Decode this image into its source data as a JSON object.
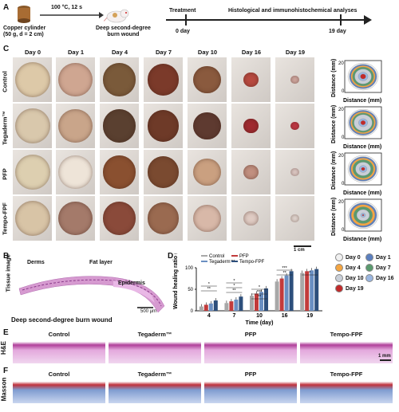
{
  "panels": {
    "A": "A",
    "B": "B",
    "C": "C",
    "D": "D",
    "E": "E",
    "F": "F"
  },
  "panelA": {
    "cylinder": "Copper cylinder\n(50 g, d = 2 cm)",
    "condition": "100 °C, 12 s",
    "burn": "Deep second-degree\nburn wound",
    "treatment": "Treatment",
    "analysis": "Histological and immunohistochemical analyses",
    "day0": "0 day",
    "day19": "19 day"
  },
  "panelC": {
    "days": [
      "Day 0",
      "Day 1",
      "Day 4",
      "Day 7",
      "Day 10",
      "Day 16",
      "Day 19"
    ],
    "rows": [
      "Control",
      "Tegaderm™",
      "PFP",
      "Tempo-FPF"
    ],
    "scale": "1 cm",
    "axis_y": "Distance (mm)",
    "axis_x": "Distance (mm)",
    "tick0": "0",
    "tick20": "20"
  },
  "legend": [
    {
      "label": "Day 0",
      "color": "#f0f0f0"
    },
    {
      "label": "Day 1",
      "color": "#5b7fbf"
    },
    {
      "label": "Day 4",
      "color": "#f4a541"
    },
    {
      "label": "Day 7",
      "color": "#5a9a6e"
    },
    {
      "label": "Day 10",
      "color": "#c9cfd8"
    },
    {
      "label": "Day 16",
      "color": "#9ab6e0"
    },
    {
      "label": "Day 19",
      "color": "#c22a2a"
    }
  ],
  "panelB": {
    "ylabel": "Tissue image",
    "derms": "Derms",
    "fat": "Fat layer",
    "epidermis": "Epidermis",
    "scale": "500 µm",
    "caption": "Deep second-degree burn wound"
  },
  "chart_data": {
    "type": "bar",
    "title": "",
    "xlabel": "Time (day)",
    "ylabel": "Wound healing ratio (%)",
    "ylim": [
      0,
      100
    ],
    "yticks": [
      "0",
      "50",
      "100"
    ],
    "categories": [
      "4",
      "7",
      "10",
      "16",
      "19"
    ],
    "series": [
      {
        "name": "Control",
        "color": "#a8a8a8",
        "values": [
          10,
          18,
          35,
          68,
          88
        ]
      },
      {
        "name": "PFP",
        "color": "#c23b3b",
        "values": [
          14,
          22,
          40,
          75,
          92
        ]
      },
      {
        "name": "Tegaderm™",
        "color": "#6a8fc2",
        "values": [
          17,
          26,
          44,
          82,
          94
        ]
      },
      {
        "name": "Tempo-FPF",
        "color": "#2d4f7c",
        "values": [
          24,
          33,
          52,
          92,
          97
        ]
      }
    ],
    "significance": [
      "**",
      "*",
      "**",
      "*",
      "*",
      "**",
      "***",
      "*",
      "**",
      "***",
      "*"
    ]
  },
  "panelE": {
    "ylabel": "H&E",
    "labels": [
      "Control",
      "Tegaderm™",
      "PFP",
      "Tempo-FPF"
    ],
    "scale": "1 mm"
  },
  "panelF": {
    "ylabel": "Masson",
    "labels": [
      "Control",
      "Tegaderm™",
      "PFP",
      "Tempo-FPF"
    ]
  }
}
